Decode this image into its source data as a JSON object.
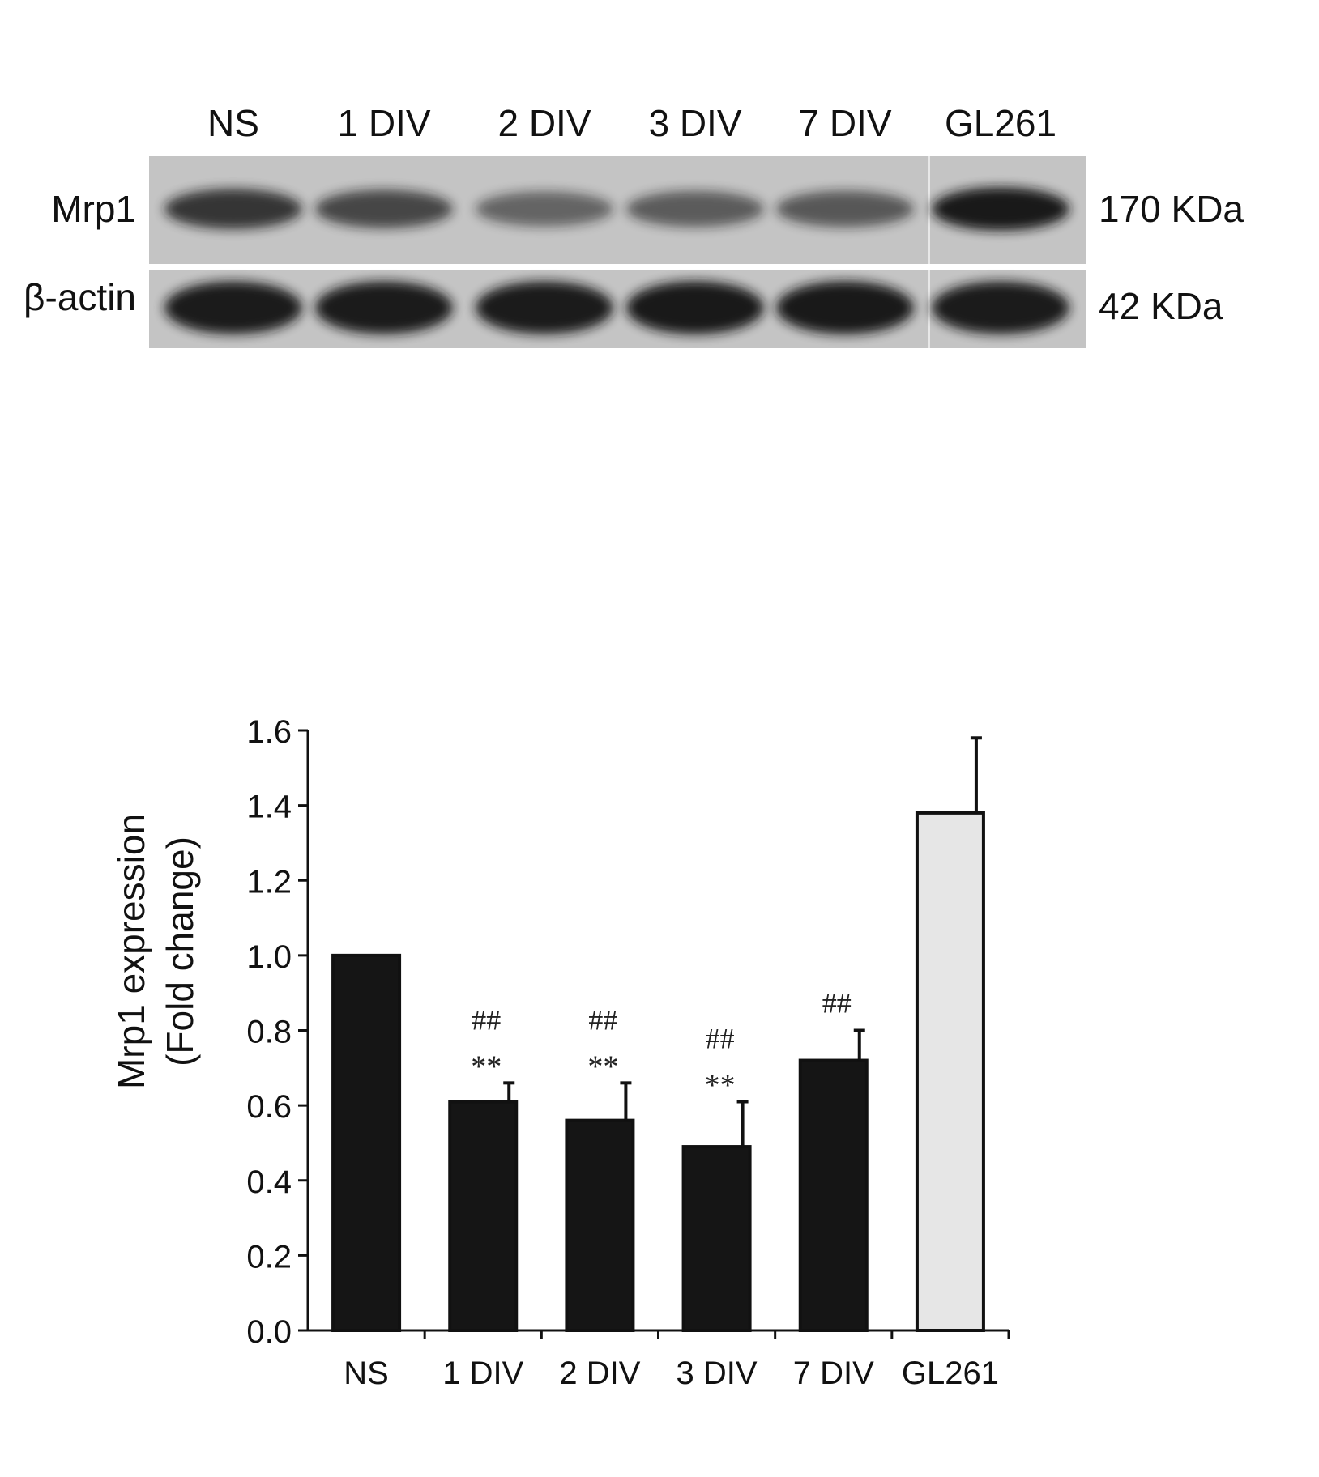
{
  "blot": {
    "lanes": [
      "NS",
      "1 DIV",
      "2 DIV",
      "3 DIV",
      "7 DIV",
      "GL261"
    ],
    "rows": [
      {
        "label": "Mrp1",
        "size": "170 KDa",
        "band_intensity": [
          0.82,
          0.72,
          0.55,
          0.6,
          0.62,
          0.98
        ]
      },
      {
        "label": "β-actin",
        "size": "42 KDa",
        "band_intensity": [
          0.97,
          0.97,
          0.97,
          0.98,
          0.98,
          0.97
        ]
      }
    ],
    "colors": {
      "background": "#c4c4c4",
      "band": "#121212"
    }
  },
  "chart_data": {
    "type": "bar",
    "title": "",
    "xlabel": "",
    "ylabel": "Mrp1 expression",
    "ylabel_line2": "(Fold change)",
    "ylim": [
      0,
      1.6
    ],
    "yticks": [
      "0.0",
      "0.2",
      "0.4",
      "0.6",
      "0.8",
      "1.0",
      "1.2",
      "1.4",
      "1.6"
    ],
    "categories": [
      "NS",
      "1 DIV",
      "2 DIV",
      "3 DIV",
      "7 DIV",
      "GL261"
    ],
    "values": [
      1.0,
      0.61,
      0.56,
      0.49,
      0.72,
      1.38
    ],
    "errors": [
      0,
      0.05,
      0.1,
      0.12,
      0.08,
      0.2
    ],
    "significance": [
      [],
      [
        "##",
        "**"
      ],
      [
        "##",
        "**"
      ],
      [
        "##",
        "**"
      ],
      [
        "##"
      ],
      []
    ],
    "bar_colors": [
      "#151515",
      "#151515",
      "#151515",
      "#151515",
      "#151515",
      "#e6e6e6"
    ],
    "grid": false
  }
}
